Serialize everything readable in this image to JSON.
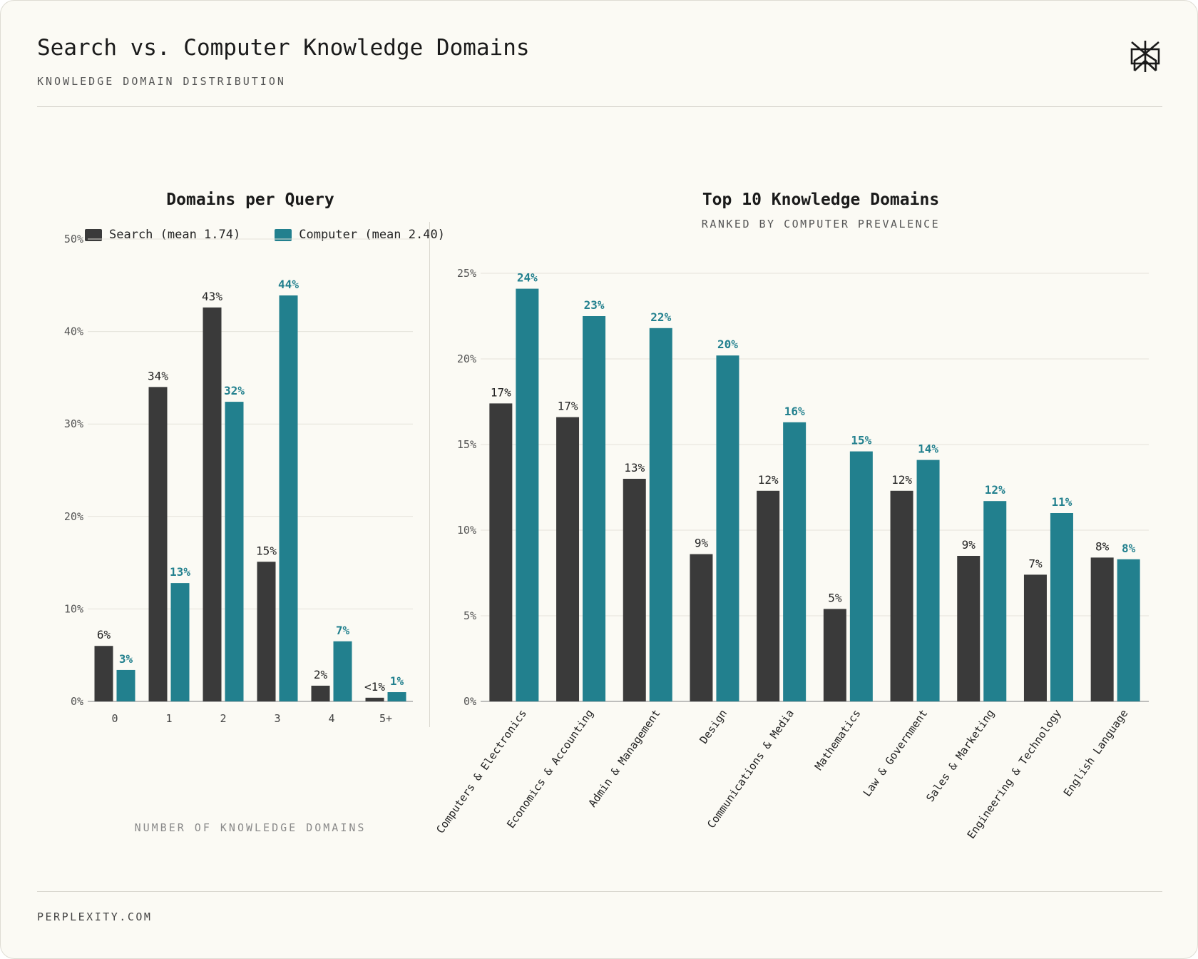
{
  "header": {
    "title": "Search vs. Computer Knowledge Domains",
    "subtitle": "KNOWLEDGE DOMAIN DISTRIBUTION"
  },
  "footer": {
    "site": "PERPLEXITY.COM"
  },
  "colors": {
    "search": "#3a3a3a",
    "computer": "#22808e",
    "grid": "#e4e2da",
    "axis": "#9a9a9a"
  },
  "icons": {
    "logo": "perplexity-logo-icon"
  },
  "chart_data": [
    {
      "type": "bar",
      "title": "Domains per Query",
      "xlabel": "NUMBER OF KNOWLEDGE DOMAINS",
      "ylabel": "",
      "ylim": [
        0,
        50
      ],
      "yticks": [
        "0%",
        "10%",
        "20%",
        "30%",
        "40%",
        "50%"
      ],
      "categories": [
        "0",
        "1",
        "2",
        "3",
        "4",
        "5+"
      ],
      "legend_position": "top",
      "grid": true,
      "series": [
        {
          "name": "Search (mean 1.74)",
          "values": [
            6,
            34,
            42.6,
            15.1,
            1.7,
            0.4
          ],
          "labels": [
            "6%",
            "34%",
            "43%",
            "15%",
            "2%",
            "<1%"
          ]
        },
        {
          "name": "Computer (mean 2.40)",
          "values": [
            3.4,
            12.8,
            32.4,
            43.9,
            6.5,
            1.0
          ],
          "labels": [
            "3%",
            "13%",
            "32%",
            "44%",
            "7%",
            "1%"
          ]
        }
      ]
    },
    {
      "type": "bar",
      "title": "Top 10 Knowledge Domains",
      "subtitle": "RANKED BY COMPUTER PREVALENCE",
      "xlabel": "",
      "ylabel": "",
      "ylim": [
        0,
        25
      ],
      "yticks": [
        "0%",
        "5%",
        "10%",
        "15%",
        "20%",
        "25%"
      ],
      "grid": true,
      "categories": [
        "Computers & Electronics",
        "Economics & Accounting",
        "Admin & Management",
        "Design",
        "Communications & Media",
        "Mathematics",
        "Law & Government",
        "Sales & Marketing",
        "Engineering & Technology",
        "English Language"
      ],
      "series": [
        {
          "name": "Search (mean 1.74)",
          "values": [
            17.4,
            16.6,
            13.0,
            8.6,
            12.3,
            5.4,
            12.3,
            8.5,
            7.4,
            8.4
          ],
          "labels": [
            "17%",
            "17%",
            "13%",
            "9%",
            "12%",
            "5%",
            "12%",
            "9%",
            "7%",
            "8%"
          ]
        },
        {
          "name": "Computer (mean 2.40)",
          "values": [
            24.1,
            22.5,
            21.8,
            20.2,
            16.3,
            14.6,
            14.1,
            11.7,
            11.0,
            8.3
          ],
          "labels": [
            "24%",
            "23%",
            "22%",
            "20%",
            "16%",
            "15%",
            "14%",
            "12%",
            "11%",
            "8%"
          ]
        }
      ]
    }
  ]
}
